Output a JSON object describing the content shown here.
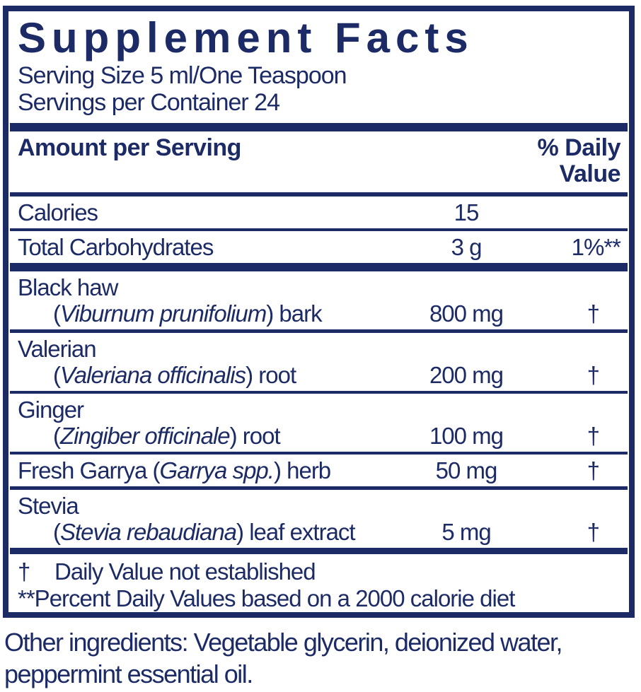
{
  "colors": {
    "navy": "#1c2b66",
    "background": "#ffffff"
  },
  "title": "Supplement Facts",
  "serving_info": {
    "serving_size": "Serving Size 5 ml/One Teaspoon",
    "servings_per_container": "Servings per Container 24"
  },
  "columns": {
    "amount_header": "Amount per Serving",
    "daily_value_header_line1": "% Daily",
    "daily_value_header_line2": "Value"
  },
  "nutrients": [
    {
      "name": "Calories",
      "amount": "15",
      "daily_value": ""
    },
    {
      "name": "Total Carbohydrates",
      "amount": "3 g",
      "daily_value": "1%**"
    }
  ],
  "ingredients": [
    {
      "name": "Black haw",
      "latin_prefix": "(",
      "latin": "Viburnum prunifolium",
      "latin_suffix": ") bark",
      "amount": "800 mg",
      "daily_value": "†"
    },
    {
      "name": "Valerian",
      "latin_prefix": "(",
      "latin": "Valeriana officinalis",
      "latin_suffix": ") root",
      "amount": "200 mg",
      "daily_value": "†"
    },
    {
      "name": "Ginger",
      "latin_prefix": "(",
      "latin": "Zingiber officinale",
      "latin_suffix": ") root",
      "amount": "100 mg",
      "daily_value": "†"
    },
    {
      "name_prefix": "Fresh Garrya (",
      "latin": "Garrya spp.",
      "latin_suffix": ") herb",
      "amount": "50 mg",
      "daily_value": "†"
    },
    {
      "name": "Stevia",
      "latin_prefix": "(",
      "latin": "Stevia rebaudiana",
      "latin_suffix": ") leaf extract",
      "amount": "5 mg",
      "daily_value": "†"
    }
  ],
  "footnotes": {
    "dagger_symbol": "†",
    "dagger_text": "Daily Value not established",
    "percent_text": "**Percent Daily Values based on a 2000 calorie diet"
  },
  "other_ingredients": "Other ingredients: Vegetable glycerin, deionized water, peppermint essential oil."
}
